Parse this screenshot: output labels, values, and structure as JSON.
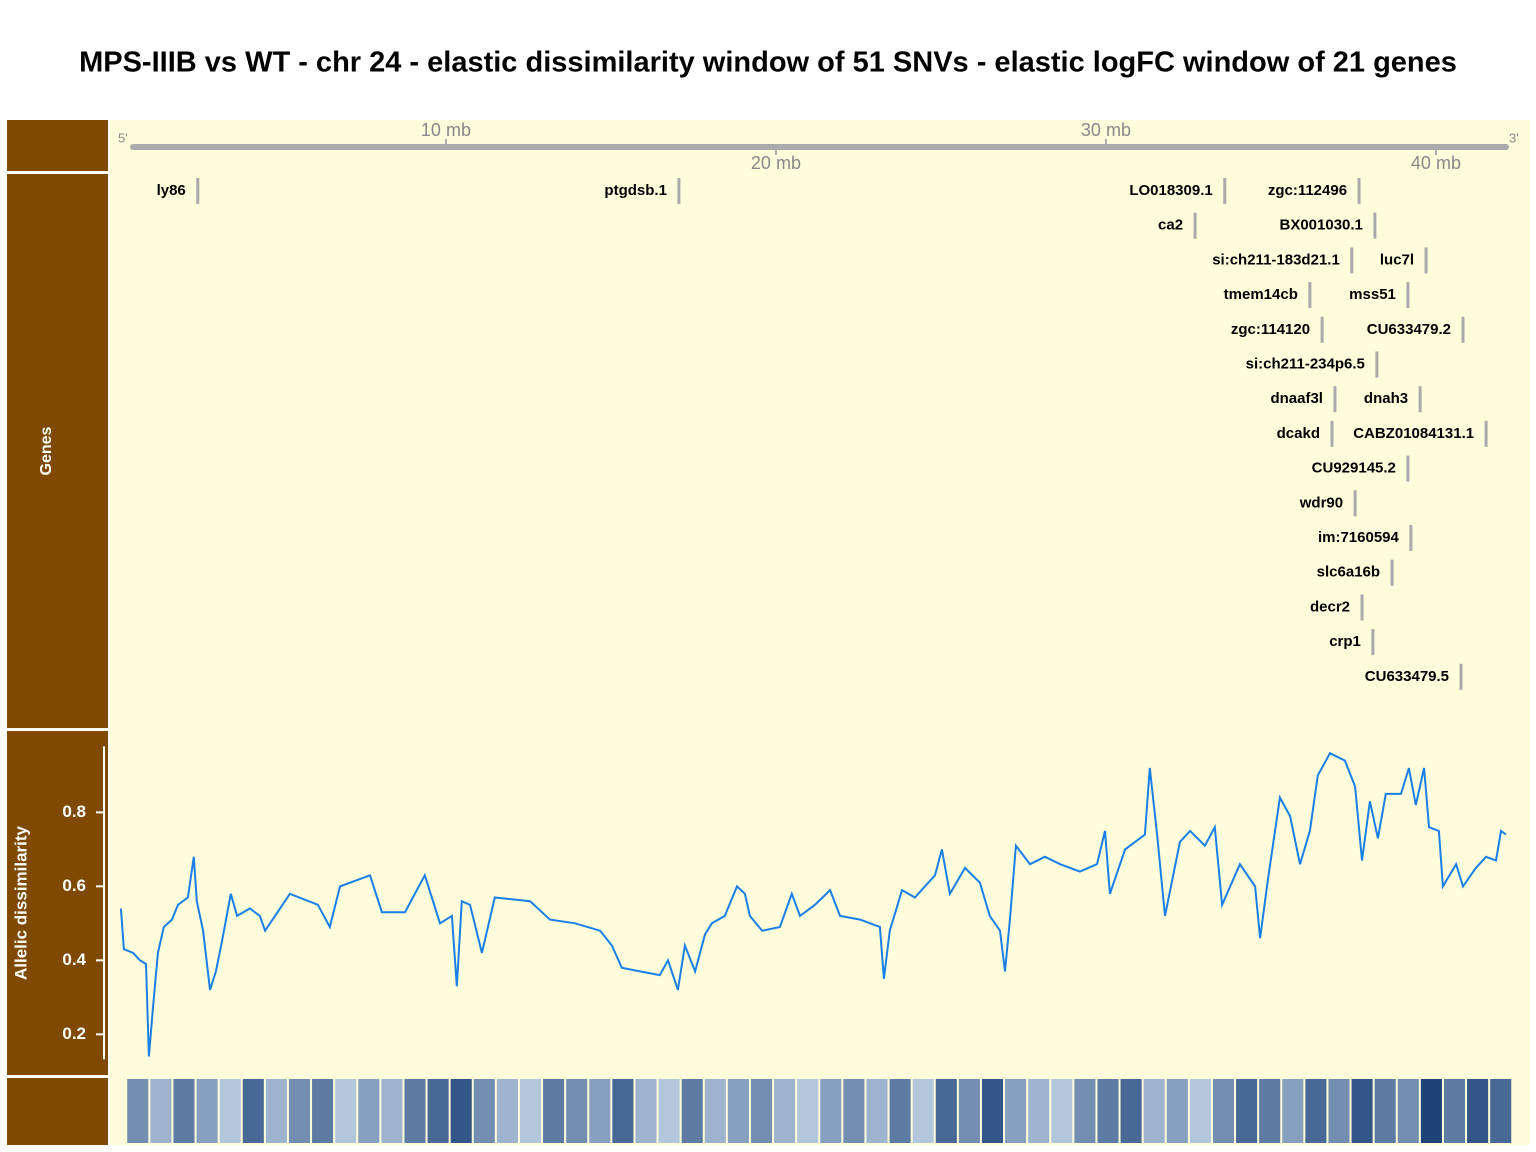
{
  "chart_data": [
    {
      "type": "genome-axis",
      "title": "MPS-IIIB vs WT - chr 24 - elastic dissimilarity window of 51 SNVs - elastic logFC window of 21 genes",
      "xlim": [
        -0.18,
        42.85
      ],
      "xticks": [
        {
          "value": 10,
          "label": "10 mb"
        },
        {
          "value": 20,
          "label": "20 mb"
        },
        {
          "value": 30,
          "label": "30 mb"
        },
        {
          "value": 40,
          "label": "40 mb"
        }
      ],
      "start_label": "5'",
      "end_label": "3'",
      "color": "#aaaaaa"
    },
    {
      "type": "gene-track",
      "title": "Genes",
      "color": "#aaaaaa",
      "categories": [
        "ly86",
        "ptgdsb.1",
        "LO018309.1",
        "zgc:112496",
        "ca2",
        "BX001030.1",
        "si:ch211-183d21.1",
        "luc7l",
        "tmem14cb",
        "mss51",
        "zgc:114120",
        "CU633479.2",
        "si:ch211-234p6.5",
        "dnaaf3l",
        "dcakd",
        "dnah3",
        "CU929145.2",
        "wdr90",
        "im:7160594",
        "slc6a16b",
        "decr2",
        "CABZ01084131.1",
        "crp1",
        "CU633479.5"
      ],
      "x": [
        2.48,
        17.06,
        33.6,
        37.67,
        32.7,
        38.15,
        37.45,
        39.7,
        36.18,
        39.15,
        36.55,
        40.82,
        38.21,
        36.94,
        36.85,
        39.52,
        39.15,
        37.55,
        39.24,
        38.67,
        37.76,
        41.52,
        38.09,
        40.76
      ]
    },
    {
      "type": "line",
      "ylabel": "Allelic dissimilarity",
      "color": "#1a80e6",
      "ylim": [
        0.09,
        1.02
      ],
      "yticks": [
        0.2,
        0.4,
        0.6,
        0.8
      ],
      "x": [
        0.15,
        0.24,
        0.52,
        0.73,
        0.91,
        1.0,
        1.12,
        1.27,
        1.45,
        1.7,
        1.88,
        2.18,
        2.36,
        2.45,
        2.64,
        2.85,
        3.03,
        3.21,
        3.48,
        3.67,
        4.06,
        4.36,
        4.52,
        5.27,
        6.12,
        6.48,
        6.79,
        7.7,
        8.06,
        8.76,
        9.36,
        9.82,
        10.18,
        10.33,
        10.48,
        10.73,
        11.09,
        11.48,
        12.55,
        13.15,
        13.91,
        14.67,
        15.03,
        15.33,
        15.88,
        16.48,
        16.73,
        17.03,
        17.24,
        17.55,
        17.85,
        18.06,
        18.45,
        18.82,
        19.06,
        19.21,
        19.58,
        20.12,
        20.48,
        20.73,
        21.18,
        21.64,
        21.94,
        22.55,
        23.15,
        23.27,
        23.45,
        23.82,
        24.21,
        24.82,
        25.03,
        25.27,
        25.73,
        26.18,
        26.48,
        26.79,
        26.94,
        27.09,
        27.27,
        27.7,
        28.15,
        28.61,
        29.21,
        29.73,
        29.97,
        30.12,
        30.58,
        31.18,
        31.33,
        31.55,
        31.79,
        32.24,
        32.55,
        33.0,
        33.3,
        33.52,
        34.06,
        34.52,
        34.67,
        34.91,
        35.27,
        35.58,
        35.88,
        36.18,
        36.42,
        36.79,
        37.24,
        37.55,
        37.76,
        38.0,
        38.24,
        38.48,
        38.94,
        39.18,
        39.39,
        39.64,
        39.79,
        40.09,
        40.21,
        40.61,
        40.82,
        41.21,
        41.52,
        41.82,
        41.97,
        42.12
      ],
      "values": [
        0.54,
        0.43,
        0.42,
        0.4,
        0.39,
        0.14,
        0.27,
        0.42,
        0.49,
        0.51,
        0.55,
        0.57,
        0.68,
        0.56,
        0.48,
        0.32,
        0.37,
        0.45,
        0.58,
        0.52,
        0.54,
        0.52,
        0.48,
        0.58,
        0.55,
        0.49,
        0.6,
        0.63,
        0.53,
        0.53,
        0.63,
        0.5,
        0.52,
        0.33,
        0.56,
        0.55,
        0.42,
        0.57,
        0.56,
        0.51,
        0.5,
        0.48,
        0.44,
        0.38,
        0.37,
        0.36,
        0.4,
        0.32,
        0.44,
        0.37,
        0.47,
        0.5,
        0.52,
        0.6,
        0.58,
        0.52,
        0.48,
        0.49,
        0.58,
        0.52,
        0.55,
        0.59,
        0.52,
        0.51,
        0.49,
        0.35,
        0.48,
        0.59,
        0.57,
        0.63,
        0.7,
        0.58,
        0.65,
        0.61,
        0.52,
        0.48,
        0.37,
        0.51,
        0.71,
        0.66,
        0.68,
        0.66,
        0.64,
        0.66,
        0.75,
        0.58,
        0.7,
        0.74,
        0.92,
        0.74,
        0.52,
        0.72,
        0.75,
        0.71,
        0.76,
        0.55,
        0.66,
        0.6,
        0.46,
        0.62,
        0.84,
        0.79,
        0.66,
        0.75,
        0.9,
        0.96,
        0.94,
        0.87,
        0.67,
        0.83,
        0.73,
        0.85,
        0.85,
        0.92,
        0.82,
        0.92,
        0.76,
        0.75,
        0.6,
        0.66,
        0.6,
        0.65,
        0.68,
        0.67,
        0.75,
        0.74
      ]
    },
    {
      "type": "heatmap-strip",
      "colors": [
        "#deebf7",
        "#08306b"
      ],
      "x": [
        0.1,
        0.8,
        1.5,
        2.2,
        2.9,
        3.6,
        4.3,
        5.0,
        5.7,
        6.4,
        7.1,
        7.8,
        8.5,
        9.2,
        9.9,
        10.6,
        11.3,
        12.0,
        12.7,
        13.4,
        14.1,
        14.8,
        15.5,
        16.2,
        16.9,
        17.6,
        18.3,
        19.0,
        19.7,
        20.4,
        21.1,
        21.8,
        22.5,
        23.2,
        23.9,
        24.6,
        25.3,
        26.0,
        26.7,
        27.4,
        28.1,
        28.8,
        29.5,
        30.2,
        30.9,
        31.6,
        32.3,
        33.0,
        33.7,
        34.4,
        35.1,
        35.8,
        36.5,
        37.2,
        37.9,
        38.6,
        39.3,
        40.0,
        40.7,
        41.4
      ],
      "values": [
        0.5,
        0.3,
        0.6,
        0.4,
        0.2,
        0.7,
        0.3,
        0.5,
        0.6,
        0.2,
        0.4,
        0.3,
        0.6,
        0.7,
        0.8,
        0.5,
        0.3,
        0.2,
        0.6,
        0.5,
        0.4,
        0.7,
        0.3,
        0.2,
        0.6,
        0.3,
        0.4,
        0.5,
        0.3,
        0.2,
        0.4,
        0.5,
        0.3,
        0.6,
        0.2,
        0.7,
        0.5,
        0.8,
        0.4,
        0.3,
        0.2,
        0.5,
        0.6,
        0.7,
        0.3,
        0.4,
        0.2,
        0.5,
        0.7,
        0.6,
        0.4,
        0.7,
        0.5,
        0.8,
        0.6,
        0.5,
        0.9,
        0.6,
        0.8,
        0.7
      ]
    }
  ]
}
